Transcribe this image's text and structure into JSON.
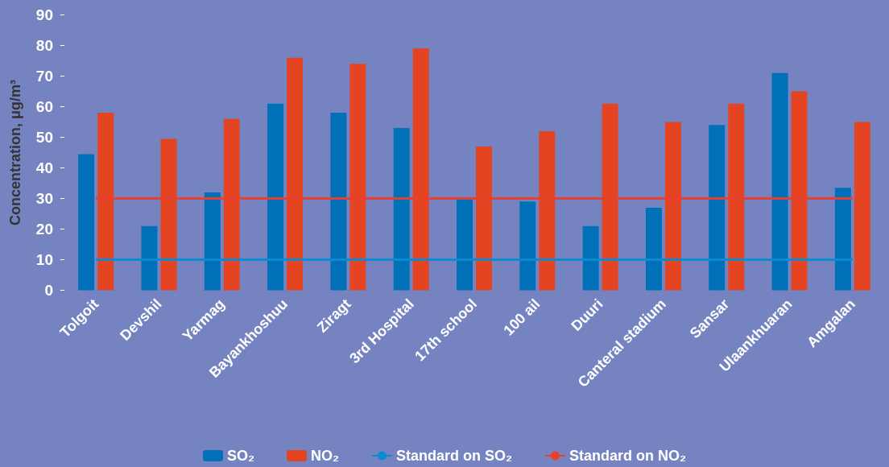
{
  "chart_data": {
    "type": "bar",
    "ylabel": "Concentration, μg/m³",
    "categories": [
      "Tolgoit",
      "Devshil",
      "Yarmag",
      "Bayankhoshuu",
      "Ziragt",
      "3rd Hospital",
      "17th school",
      "100 ail",
      "Duuri",
      "Canteral stadium",
      "Sansar",
      "Ulaankhuaran",
      "Amgalan"
    ],
    "series": [
      {
        "name": "SO₂",
        "color": "#0070b8",
        "values": [
          44.5,
          21,
          32,
          61,
          58,
          53,
          30,
          29,
          21,
          27,
          54,
          71,
          33.5
        ]
      },
      {
        "name": "NO₂",
        "color": "#e44422",
        "values": [
          58,
          49.5,
          56,
          76,
          74,
          79,
          47,
          52,
          61,
          55,
          61,
          65,
          55
        ]
      },
      {
        "name": "Standard on SO₂",
        "type": "line",
        "color": "#0a8ad0",
        "values": [
          10,
          10,
          10,
          10,
          10,
          10,
          10,
          10,
          10,
          10,
          10,
          10,
          10
        ]
      },
      {
        "name": "Standard on NO₂",
        "type": "line",
        "color": "#e84030",
        "values": [
          30,
          30,
          30,
          30,
          30,
          30,
          30,
          30,
          30,
          30,
          30,
          30,
          30
        ]
      }
    ],
    "ylim": [
      0,
      90
    ],
    "yticks": [
      0,
      10,
      20,
      30,
      40,
      50,
      60,
      70,
      80,
      90
    ],
    "grid": false,
    "legend": "bottom",
    "marker": "none",
    "line_style": "solid"
  }
}
